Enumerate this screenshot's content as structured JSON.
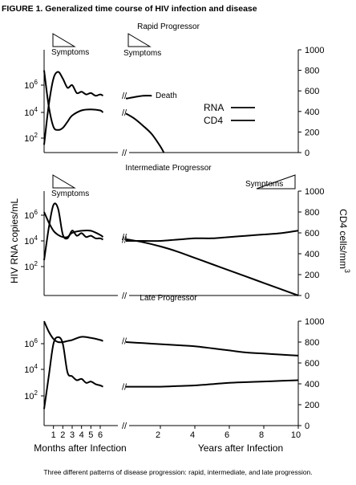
{
  "figure_title": "FIGURE 1. Generalized time course of HIV infection and disease",
  "caption": "Three different patterns of disease progression: rapid, intermediate, and late progression.",
  "shared_labels": {
    "y_left": "HIV RNA copies/mL",
    "y_right": "CD4 cells/mm",
    "y_right_superscript": "3",
    "x_months": "Months after Infection",
    "x_years": "Years after Infection",
    "legend_rna": "RNA",
    "legend_cd4": "CD4",
    "axis_break": "//"
  },
  "colors": {
    "ink": "#000000",
    "background": "#ffffff"
  },
  "chart_data": [
    {
      "type": "line",
      "title": "Rapid Progressor",
      "y_left_scale": "log",
      "y_left_ticks": [
        "10^2",
        "10^4",
        "10^6"
      ],
      "y_right_ticks": [
        0,
        200,
        400,
        600,
        800,
        1000
      ],
      "y_right_range": [
        0,
        1000
      ],
      "annotations": [
        "Symptoms",
        "Symptoms",
        "Death"
      ],
      "legend": [
        "RNA",
        "CD4"
      ],
      "legend_placement": "right",
      "grid": false,
      "series": [
        {
          "name": "RNA",
          "segment": "months",
          "x": [
            0,
            0.5,
            1,
            1.5,
            2,
            2.5,
            3,
            3.5,
            4,
            4.5,
            5,
            5.5,
            6,
            6.3
          ],
          "log10_rna": [
            1.5,
            4.5,
            6.5,
            7.0,
            6.5,
            5.8,
            6.0,
            5.4,
            5.5,
            5.3,
            5.4,
            5.2,
            5.3,
            5.2
          ]
        },
        {
          "name": "RNA",
          "segment": "years",
          "x": [
            0,
            0.1,
            0.5,
            1,
            1.5
          ],
          "log10_rna": [
            5.0,
            5.0,
            5.1,
            5.2,
            5.2
          ]
        },
        {
          "name": "CD4",
          "segment": "months",
          "x": [
            0,
            0.5,
            1,
            1.5,
            2,
            2.5,
            3,
            4,
            5,
            6,
            6.3
          ],
          "y": [
            800,
            450,
            250,
            220,
            240,
            300,
            360,
            410,
            420,
            410,
            390
          ]
        },
        {
          "name": "CD4",
          "segment": "years",
          "x": [
            0,
            0.5,
            1,
            1.5,
            2,
            2.2
          ],
          "y": [
            380,
            330,
            260,
            180,
            60,
            0
          ]
        }
      ]
    },
    {
      "type": "line",
      "title": "Intermediate Progressor",
      "y_left_scale": "log",
      "y_left_ticks": [
        "10^2",
        "10^4",
        "10^6"
      ],
      "y_right_ticks": [
        0,
        200,
        400,
        600,
        800,
        1000
      ],
      "y_right_range": [
        0,
        1000
      ],
      "annotations": [
        "Symptoms",
        "Symptoms"
      ],
      "grid": false,
      "series": [
        {
          "name": "RNA",
          "segment": "months",
          "x": [
            0,
            0.5,
            1,
            1.5,
            2,
            2.5,
            3,
            3.5,
            4,
            4.5,
            5,
            5.5,
            6,
            6.3
          ],
          "log10_rna": [
            2.5,
            5.0,
            6.8,
            6.5,
            4.5,
            4.2,
            4.8,
            4.4,
            4.6,
            4.3,
            4.4,
            4.2,
            4.2,
            4.1
          ]
        },
        {
          "name": "RNA",
          "segment": "years",
          "x": [
            0,
            1,
            2,
            3,
            4,
            5,
            6,
            7,
            8,
            9,
            10
          ],
          "log10_rna": [
            4.0,
            4.0,
            4.0,
            4.1,
            4.2,
            4.2,
            4.3,
            4.4,
            4.5,
            4.6,
            4.8
          ]
        },
        {
          "name": "CD4",
          "segment": "months",
          "x": [
            0,
            0.5,
            1,
            1.5,
            2,
            2.5,
            3,
            4,
            5,
            6,
            6.3
          ],
          "y": [
            800,
            700,
            620,
            580,
            560,
            560,
            600,
            620,
            620,
            580,
            560
          ]
        },
        {
          "name": "CD4",
          "segment": "years",
          "x": [
            0,
            1,
            2,
            3,
            4,
            5,
            6,
            7,
            8,
            9,
            10
          ],
          "y": [
            540,
            510,
            470,
            420,
            360,
            300,
            240,
            180,
            120,
            60,
            0
          ]
        }
      ]
    },
    {
      "type": "line",
      "title": "Late Progressor",
      "y_left_scale": "log",
      "y_left_ticks": [
        "10^2",
        "10^4",
        "10^6"
      ],
      "y_right_ticks": [
        0,
        200,
        400,
        600,
        800,
        1000
      ],
      "y_right_range": [
        0,
        1000
      ],
      "grid": false,
      "x_months_ticks": [
        1,
        2,
        3,
        4,
        5,
        6
      ],
      "x_years_ticks": [
        2,
        4,
        6,
        8,
        10
      ],
      "series": [
        {
          "name": "RNA",
          "segment": "months",
          "x": [
            0,
            0.5,
            1,
            1.5,
            2,
            2.5,
            3,
            3.5,
            4,
            4.5,
            5,
            5.5,
            6,
            6.3
          ],
          "log10_rna": [
            1.0,
            3.5,
            6.0,
            6.5,
            6.0,
            3.8,
            3.5,
            3.2,
            3.3,
            3.0,
            3.1,
            2.9,
            2.8,
            2.7
          ]
        },
        {
          "name": "RNA",
          "segment": "years",
          "x": [
            0,
            1,
            2,
            3,
            4,
            5,
            6,
            7,
            8,
            9,
            10
          ],
          "log10_rna": [
            2.7,
            2.7,
            2.7,
            2.75,
            2.8,
            2.9,
            3.0,
            3.05,
            3.1,
            3.15,
            3.2
          ]
        },
        {
          "name": "CD4",
          "segment": "months",
          "x": [
            0,
            0.5,
            1,
            1.5,
            2,
            2.5,
            3,
            4,
            5,
            6,
            6.3
          ],
          "y": [
            1000,
            900,
            830,
            800,
            800,
            810,
            820,
            850,
            840,
            820,
            810
          ]
        },
        {
          "name": "CD4",
          "segment": "years",
          "x": [
            0,
            1,
            2,
            3,
            4,
            5,
            6,
            7,
            8,
            9,
            10
          ],
          "y": [
            800,
            790,
            780,
            770,
            760,
            740,
            720,
            700,
            690,
            680,
            670
          ]
        }
      ]
    }
  ]
}
